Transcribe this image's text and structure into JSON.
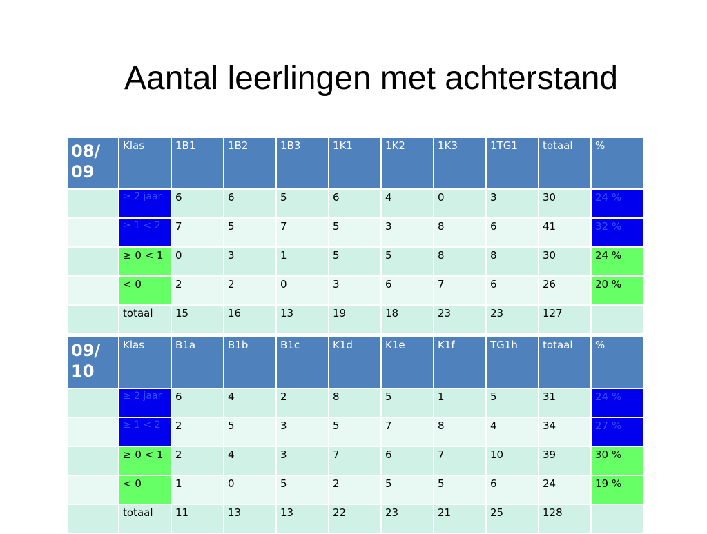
{
  "title": "Aantal leerlingen met achterstand",
  "tables": [
    {
      "id": "0809",
      "year": "08/ 09",
      "header": [
        "Klas",
        "1B1",
        "1B2",
        "1B3",
        "1K1",
        "1K2",
        "1K3",
        "1TG1",
        "totaal",
        "%"
      ],
      "rows": [
        {
          "label": "≥ 2 jaar",
          "values": [
            "6",
            "6",
            "5",
            "6",
            "4",
            "0",
            "3",
            "30"
          ],
          "pct": "24 %"
        },
        {
          "label": "≥ 1 < 2",
          "values": [
            "7",
            "5",
            "7",
            "5",
            "3",
            "8",
            "6",
            "41"
          ],
          "pct": "32 %"
        },
        {
          "label": "≥ 0 < 1",
          "values": [
            "0",
            "3",
            "1",
            "5",
            "5",
            "8",
            "8",
            "30"
          ],
          "pct": "24 %"
        },
        {
          "label": "< 0",
          "values": [
            "2",
            "2",
            "0",
            "3",
            "6",
            "7",
            "6",
            "26"
          ],
          "pct": "20 %"
        },
        {
          "label": "totaal",
          "values": [
            "15",
            "16",
            "13",
            "19",
            "18",
            "23",
            "23",
            "127"
          ],
          "pct": ""
        }
      ]
    },
    {
      "id": "0910",
      "year": "09/ 10",
      "header": [
        "Klas",
        "B1a",
        "B1b",
        "B1c",
        "K1d",
        "K1e",
        "K1f",
        "TG1h",
        "totaal",
        "%"
      ],
      "rows": [
        {
          "label": "≥ 2 jaar",
          "values": [
            "6",
            "4",
            "2",
            "8",
            "5",
            "1",
            "5",
            "31"
          ],
          "pct": "24 %"
        },
        {
          "label": "≥ 1 < 2",
          "values": [
            "2",
            "5",
            "3",
            "5",
            "7",
            "8",
            "4",
            "34"
          ],
          "pct": "27 %"
        },
        {
          "label": "≥ 0 < 1",
          "values": [
            "2",
            "4",
            "3",
            "7",
            "6",
            "7",
            "10",
            "39"
          ],
          "pct": "30 %"
        },
        {
          "label": "< 0",
          "values": [
            "1",
            "0",
            "5",
            "2",
            "5",
            "5",
            "6",
            "24"
          ],
          "pct": "19 %"
        },
        {
          "label": "totaal",
          "values": [
            "11",
            "13",
            "13",
            "22",
            "23",
            "21",
            "25",
            "128"
          ],
          "pct": ""
        }
      ]
    }
  ],
  "colors": {
    "header_bg": "#4f81bd",
    "band_dark": "#d0f2e6",
    "band_light": "#e8f8f2",
    "highlight_blue": "#0000ee",
    "highlight_green": "#66ff66"
  }
}
